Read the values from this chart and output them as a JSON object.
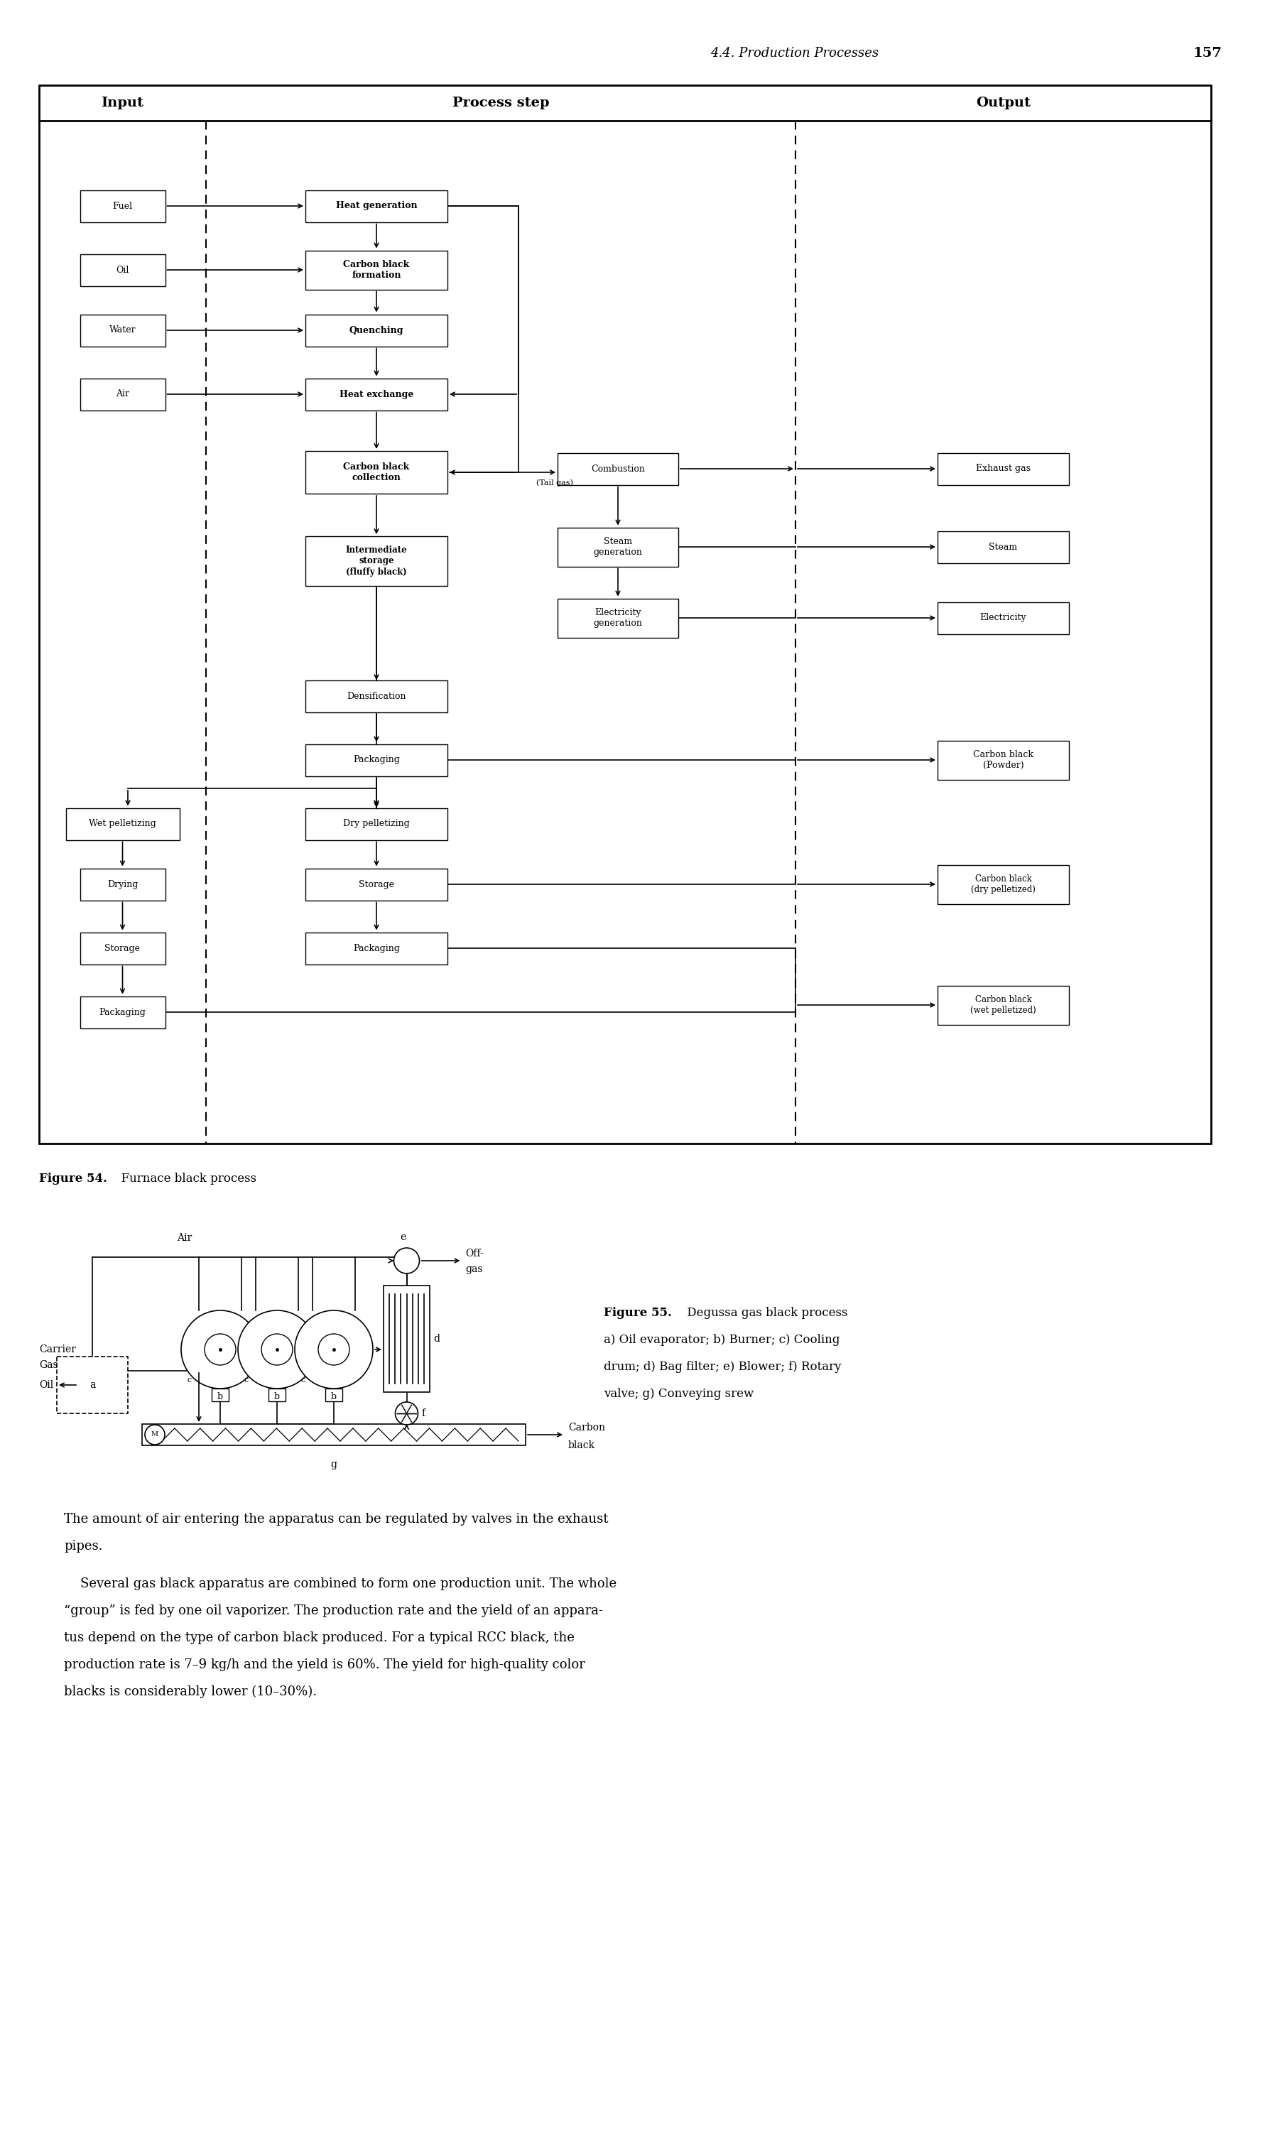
{
  "page_header": "4.4. Production Processes",
  "page_number": "157",
  "fig54_caption_bold": "Figure 54.",
  "fig54_caption_rest": "  Furnace black process",
  "fig55_caption_bold": "Figure 55.",
  "fig55_caption_rest": " Degussa gas black process",
  "fig55_line2": "a) Oil evaporator; b) Burner; c) Cooling",
  "fig55_line3": "drum; d) Bag filter; e) Blower; f) Rotary",
  "fig55_line4": "valve; g) Conveying srew",
  "para1_line1": "The amount of air entering the apparatus can be regulated by valves in the exhaust",
  "para1_line2": "pipes.",
  "para2_lines": [
    "    Several gas black apparatus are combined to form one production unit. The whole",
    "“group” is fed by one oil vaporizer. The production rate and the yield of an appara-",
    "tus depend on the type of carbon black produced. For a typical RCC black, the",
    "production rate is 7–9 kg/h and the yield is 60%. The yield for high-quality color",
    "blacks is considerably lower (10–30%)."
  ]
}
